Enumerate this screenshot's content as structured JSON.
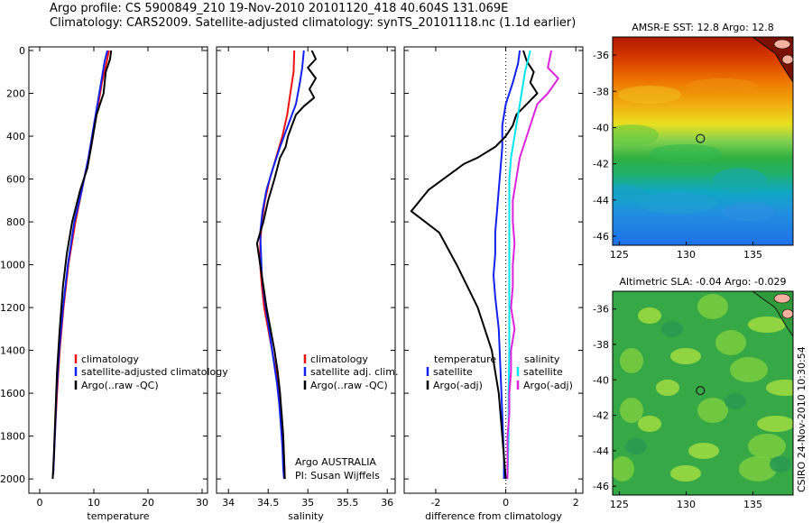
{
  "header": {
    "line1": "Argo profile: CS 5900849_210 19-Nov-2010 20101120_418 40.604S 131.069E",
    "line2": "Climatology: CARS2009. Satellite-adjusted climatology: synTS_20101118.nc (1.1d earlier)"
  },
  "colors": {
    "red": "#ee1111",
    "blue": "#1122ee",
    "black": "#000000",
    "cyan": "#00e5ee",
    "magenta": "#dd22dd",
    "land": "#f5b0a0"
  },
  "chart_data": [
    {
      "type": "line",
      "xlabel": "temperature",
      "xlim": [
        -2,
        31
      ],
      "xticks": [
        0,
        10,
        20,
        30
      ],
      "ylim": [
        2050,
        0
      ],
      "yticks": [
        0,
        200,
        400,
        600,
        800,
        1000,
        1200,
        1400,
        1600,
        1800,
        2000
      ],
      "legend": {
        "placement": "lower-right",
        "entries": [
          "climatology",
          "satellite-adjusted climatology",
          "Argo(..raw -QC)"
        ]
      },
      "series": [
        {
          "name": "climatology",
          "color": "red",
          "points": [
            [
              12.8,
              0
            ],
            [
              12.4,
              50
            ],
            [
              11.5,
              150
            ],
            [
              10.5,
              300
            ],
            [
              9.5,
              450
            ],
            [
              8.2,
              600
            ],
            [
              6.6,
              800
            ],
            [
              5.3,
              1000
            ],
            [
              4.4,
              1200
            ],
            [
              3.7,
              1400
            ],
            [
              3.2,
              1600
            ],
            [
              2.8,
              1800
            ],
            [
              2.5,
              1980
            ]
          ]
        },
        {
          "name": "satellite-adjusted climatology",
          "color": "blue",
          "points": [
            [
              12.5,
              0
            ],
            [
              12.0,
              50
            ],
            [
              11.0,
              200
            ],
            [
              10.0,
              350
            ],
            [
              9.0,
              500
            ],
            [
              7.8,
              650
            ],
            [
              6.4,
              800
            ],
            [
              5.2,
              1000
            ],
            [
              4.3,
              1200
            ],
            [
              3.6,
              1400
            ],
            [
              3.1,
              1600
            ],
            [
              2.8,
              1800
            ],
            [
              2.5,
              1980
            ]
          ]
        },
        {
          "name": "Argo(..raw -QC)",
          "color": "black",
          "points": [
            [
              13.2,
              0
            ],
            [
              13.0,
              40
            ],
            [
              12.2,
              100
            ],
            [
              11.8,
              200
            ],
            [
              10.5,
              300
            ],
            [
              9.5,
              450
            ],
            [
              8.8,
              550
            ],
            [
              7.5,
              650
            ],
            [
              6.0,
              800
            ],
            [
              5.0,
              950
            ],
            [
              4.3,
              1100
            ],
            [
              3.7,
              1300
            ],
            [
              3.2,
              1500
            ],
            [
              2.9,
              1700
            ],
            [
              2.6,
              1900
            ],
            [
              2.4,
              2000
            ]
          ]
        }
      ]
    },
    {
      "type": "line",
      "xlabel": "salinity",
      "xlim": [
        33.85,
        36.1
      ],
      "xticks": [
        34,
        34.5,
        35,
        35.5,
        36
      ],
      "ylim": [
        2050,
        0
      ],
      "yticks": [
        0,
        200,
        400,
        600,
        800,
        1000,
        1200,
        1400,
        1600,
        1800,
        2000
      ],
      "legend": {
        "placement": "lower-right",
        "entries": [
          "climatology",
          "satellite adj. clim.",
          "Argo(..raw -QC)"
        ]
      },
      "annotations": [
        "Argo AUSTRALIA",
        "PI: Susan Wijffels"
      ],
      "series": [
        {
          "name": "climatology",
          "color": "red",
          "points": [
            [
              34.83,
              0
            ],
            [
              34.82,
              100
            ],
            [
              34.78,
              200
            ],
            [
              34.74,
              300
            ],
            [
              34.68,
              400
            ],
            [
              34.6,
              500
            ],
            [
              34.52,
              600
            ],
            [
              34.46,
              700
            ],
            [
              34.42,
              800
            ],
            [
              34.4,
              900
            ],
            [
              34.4,
              1000
            ],
            [
              34.42,
              1100
            ],
            [
              34.45,
              1200
            ],
            [
              34.5,
              1300
            ],
            [
              34.55,
              1400
            ],
            [
              34.6,
              1500
            ],
            [
              34.64,
              1600
            ],
            [
              34.67,
              1700
            ],
            [
              34.69,
              1800
            ],
            [
              34.7,
              1900
            ],
            [
              34.71,
              2000
            ]
          ]
        },
        {
          "name": "satellite adj. clim.",
          "color": "blue",
          "points": [
            [
              34.95,
              0
            ],
            [
              34.93,
              80
            ],
            [
              34.9,
              150
            ],
            [
              34.85,
              250
            ],
            [
              34.75,
              350
            ],
            [
              34.65,
              450
            ],
            [
              34.56,
              550
            ],
            [
              34.48,
              650
            ],
            [
              34.43,
              750
            ],
            [
              34.4,
              850
            ],
            [
              34.41,
              950
            ],
            [
              34.42,
              1050
            ],
            [
              34.45,
              1150
            ],
            [
              34.49,
              1250
            ],
            [
              34.53,
              1350
            ],
            [
              34.57,
              1450
            ],
            [
              34.61,
              1550
            ],
            [
              34.64,
              1650
            ],
            [
              34.66,
              1750
            ],
            [
              34.68,
              1850
            ],
            [
              34.69,
              1950
            ],
            [
              34.7,
              2000
            ]
          ]
        },
        {
          "name": "Argo(..raw -QC)",
          "color": "black",
          "points": [
            [
              35.05,
              0
            ],
            [
              35.1,
              40
            ],
            [
              35.0,
              80
            ],
            [
              35.1,
              130
            ],
            [
              35.02,
              180
            ],
            [
              35.08,
              220
            ],
            [
              34.95,
              260
            ],
            [
              34.85,
              300
            ],
            [
              34.8,
              350
            ],
            [
              34.75,
              400
            ],
            [
              34.72,
              450
            ],
            [
              34.65,
              500
            ],
            [
              34.58,
              600
            ],
            [
              34.5,
              700
            ],
            [
              34.44,
              800
            ],
            [
              34.36,
              900
            ],
            [
              34.4,
              1000
            ],
            [
              34.44,
              1100
            ],
            [
              34.48,
              1200
            ],
            [
              34.53,
              1300
            ],
            [
              34.58,
              1400
            ],
            [
              34.62,
              1500
            ],
            [
              34.65,
              1600
            ],
            [
              34.67,
              1700
            ],
            [
              34.69,
              1800
            ],
            [
              34.7,
              1900
            ],
            [
              34.71,
              2000
            ]
          ]
        }
      ]
    },
    {
      "type": "line",
      "xlabel": "difference from climatology",
      "xlim": [
        -2.9,
        2.2
      ],
      "xticks": [
        -2,
        0,
        2
      ],
      "ylim": [
        2050,
        0
      ],
      "yticks": [
        0,
        200,
        400,
        600,
        800,
        1000,
        1200,
        1400,
        1600,
        1800,
        2000
      ],
      "legend": {
        "placement": "lower-center",
        "entries": [
          "temperature",
          "satellite",
          "Argo(-adj)",
          "salinity",
          "satellite",
          "Argo(-adj)"
        ]
      },
      "series": [
        {
          "name": "temperature satellite",
          "color": "blue",
          "points": [
            [
              0.4,
              0
            ],
            [
              0.35,
              60
            ],
            [
              0.2,
              150
            ],
            [
              0,
              250
            ],
            [
              -0.1,
              350
            ],
            [
              -0.1,
              450
            ],
            [
              -0.15,
              550
            ],
            [
              -0.2,
              650
            ],
            [
              -0.25,
              750
            ],
            [
              -0.3,
              850
            ],
            [
              -0.3,
              950
            ],
            [
              -0.35,
              1050
            ],
            [
              -0.3,
              1150
            ],
            [
              -0.2,
              1300
            ],
            [
              -0.15,
              1500
            ],
            [
              -0.1,
              1700
            ],
            [
              -0.05,
              1900
            ],
            [
              -0.05,
              2000
            ]
          ]
        },
        {
          "name": "temperature Argo(-adj)",
          "color": "black",
          "points": [
            [
              0.5,
              0
            ],
            [
              0.6,
              50
            ],
            [
              0.8,
              100
            ],
            [
              0.7,
              150
            ],
            [
              0.9,
              200
            ],
            [
              0.6,
              250
            ],
            [
              0.3,
              300
            ],
            [
              0.2,
              350
            ],
            [
              0,
              400
            ],
            [
              -0.3,
              450
            ],
            [
              -0.8,
              500
            ],
            [
              -1.2,
              530
            ],
            [
              -2.2,
              650
            ],
            [
              -2.7,
              750
            ],
            [
              -1.9,
              850
            ],
            [
              -1.4,
              1000
            ],
            [
              -1.1,
              1100
            ],
            [
              -0.8,
              1200
            ],
            [
              -0.6,
              1300
            ],
            [
              -0.4,
              1400
            ],
            [
              -0.3,
              1500
            ],
            [
              -0.2,
              1600
            ],
            [
              -0.15,
              1700
            ],
            [
              -0.1,
              1800
            ],
            [
              -0.05,
              1900
            ],
            [
              0,
              2000
            ]
          ]
        },
        {
          "name": "salinity satellite",
          "color": "cyan",
          "points": [
            [
              0.7,
              0
            ],
            [
              0.55,
              100
            ],
            [
              0.45,
              200
            ],
            [
              0.35,
              300
            ],
            [
              0.25,
              400
            ],
            [
              0.15,
              500
            ],
            [
              0.1,
              600
            ],
            [
              0.1,
              800
            ],
            [
              0.1,
              1000
            ],
            [
              0.1,
              1200
            ],
            [
              0.1,
              1400
            ],
            [
              0.08,
              1600
            ],
            [
              0.08,
              1800
            ],
            [
              0.05,
              2000
            ]
          ]
        },
        {
          "name": "salinity Argo(-adj)",
          "color": "magenta",
          "points": [
            [
              1.3,
              0
            ],
            [
              1.2,
              80
            ],
            [
              1.5,
              130
            ],
            [
              1.2,
              200
            ],
            [
              0.9,
              250
            ],
            [
              0.8,
              300
            ],
            [
              0.6,
              400
            ],
            [
              0.4,
              500
            ],
            [
              0.3,
              600
            ],
            [
              0.2,
              700
            ],
            [
              0.2,
              800
            ],
            [
              0.25,
              900
            ],
            [
              0.2,
              1000
            ],
            [
              0.2,
              1100
            ],
            [
              0.15,
              1200
            ],
            [
              0.25,
              1300
            ],
            [
              0.15,
              1400
            ],
            [
              0.15,
              1500
            ],
            [
              0.1,
              1600
            ],
            [
              0.1,
              1700
            ],
            [
              0.05,
              1800
            ],
            [
              0.05,
              1900
            ],
            [
              0.05,
              2000
            ]
          ]
        }
      ]
    },
    {
      "type": "heatmap",
      "title": "AMSR-E SST: 12.8  Argo: 12.8",
      "xlim": [
        124.5,
        138
      ],
      "ylim": [
        -46.5,
        -35
      ],
      "xticks": [
        125,
        130,
        135
      ],
      "yticks": [
        -36,
        -38,
        -40,
        -42,
        -44,
        -46
      ],
      "marker": [
        131.069,
        -40.604
      ]
    },
    {
      "type": "heatmap",
      "title": "Altimetric SLA: -0.04  Argo: -0.029",
      "xlim": [
        124.5,
        138
      ],
      "ylim": [
        -46.5,
        -35
      ],
      "xticks": [
        125,
        130,
        135
      ],
      "yticks": [
        -36,
        -38,
        -40,
        -42,
        -44,
        -46
      ],
      "marker": [
        131.069,
        -40.604
      ]
    }
  ],
  "footer": {
    "credit": "CSIRO 24-Nov-2010 10:30:54"
  }
}
